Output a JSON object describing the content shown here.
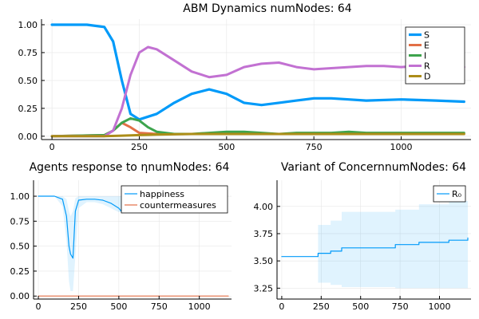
{
  "chart_data": [
    {
      "type": "line",
      "title": "ABM Dynamics numNodes: 64",
      "xlim": [
        -30,
        1200
      ],
      "ylim": [
        -0.03,
        1.05
      ],
      "x_ticks": [
        0,
        250,
        500,
        750,
        1000
      ],
      "x_tick_labels": [
        "0",
        "250",
        "500",
        "750",
        "1000"
      ],
      "y_ticks": [
        0.0,
        0.25,
        0.5,
        0.75,
        1.0
      ],
      "y_tick_labels": [
        "0.00",
        "0.25",
        "0.50",
        "0.75",
        "1.00"
      ],
      "grid": true,
      "legend_position": "top-right",
      "series": [
        {
          "name": "S",
          "color": "#009af9",
          "x": [
            0,
            100,
            150,
            175,
            200,
            225,
            250,
            300,
            350,
            400,
            450,
            500,
            550,
            600,
            650,
            700,
            750,
            800,
            850,
            900,
            1000,
            1100,
            1180
          ],
          "y": [
            1.0,
            1.0,
            0.98,
            0.85,
            0.5,
            0.2,
            0.15,
            0.2,
            0.3,
            0.38,
            0.42,
            0.38,
            0.3,
            0.28,
            0.3,
            0.32,
            0.34,
            0.34,
            0.33,
            0.32,
            0.33,
            0.32,
            0.31
          ]
        },
        {
          "name": "E",
          "color": "#e26f46",
          "x": [
            0,
            150,
            175,
            200,
            225,
            250,
            300,
            400,
            500,
            600,
            700,
            800,
            900,
            1000,
            1100,
            1180
          ],
          "y": [
            0.0,
            0.01,
            0.05,
            0.12,
            0.08,
            0.03,
            0.02,
            0.02,
            0.02,
            0.02,
            0.02,
            0.02,
            0.02,
            0.02,
            0.02,
            0.02
          ]
        },
        {
          "name": "I",
          "color": "#3da44d",
          "x": [
            0,
            150,
            175,
            200,
            225,
            250,
            275,
            300,
            350,
            400,
            450,
            500,
            550,
            600,
            650,
            700,
            750,
            800,
            850,
            900,
            1000,
            1100,
            1180
          ],
          "y": [
            0.0,
            0.01,
            0.05,
            0.12,
            0.16,
            0.14,
            0.08,
            0.04,
            0.02,
            0.02,
            0.03,
            0.04,
            0.04,
            0.03,
            0.02,
            0.03,
            0.03,
            0.03,
            0.04,
            0.03,
            0.03,
            0.03,
            0.03
          ]
        },
        {
          "name": "R",
          "color": "#c271d2",
          "x": [
            0,
            150,
            175,
            200,
            225,
            250,
            275,
            300,
            350,
            400,
            450,
            500,
            550,
            600,
            650,
            700,
            750,
            800,
            850,
            900,
            950,
            1000,
            1050,
            1100,
            1180
          ],
          "y": [
            0.0,
            0.0,
            0.05,
            0.25,
            0.55,
            0.75,
            0.8,
            0.78,
            0.68,
            0.58,
            0.53,
            0.55,
            0.62,
            0.65,
            0.66,
            0.62,
            0.6,
            0.61,
            0.62,
            0.63,
            0.63,
            0.62,
            0.63,
            0.63,
            0.62
          ]
        },
        {
          "name": "D",
          "color": "#ac8d18",
          "x": [
            0,
            150,
            200,
            250,
            300,
            400,
            500,
            600,
            800,
            1000,
            1180
          ],
          "y": [
            0.0,
            0.0,
            0.005,
            0.01,
            0.015,
            0.02,
            0.02,
            0.02,
            0.02,
            0.02,
            0.02
          ]
        }
      ]
    },
    {
      "type": "line",
      "title": "Agents response to ηnumNodes: 64",
      "xlim": [
        -30,
        1200
      ],
      "ylim": [
        -0.03,
        1.16
      ],
      "x_ticks": [
        0,
        250,
        500,
        750,
        1000
      ],
      "x_tick_labels": [
        "0",
        "250",
        "500",
        "750",
        "1000"
      ],
      "y_ticks": [
        0.0,
        0.25,
        0.5,
        0.75,
        1.0
      ],
      "y_tick_labels": [
        "0.00",
        "0.25",
        "0.50",
        "0.75",
        "1.00"
      ],
      "grid": true,
      "legend_position": "top-right",
      "series": [
        {
          "name": "happiness",
          "color": "#009af9",
          "x": [
            0,
            100,
            150,
            175,
            190,
            200,
            215,
            230,
            250,
            300,
            350,
            400,
            450,
            500,
            520
          ],
          "y": [
            1.0,
            1.0,
            0.97,
            0.8,
            0.5,
            0.42,
            0.38,
            0.85,
            0.96,
            0.97,
            0.97,
            0.96,
            0.93,
            0.88,
            0.84
          ],
          "band_low": [
            1.0,
            1.0,
            0.9,
            0.55,
            0.15,
            0.05,
            0.05,
            0.4,
            0.88,
            0.94,
            0.94,
            0.92,
            0.88,
            0.84,
            0.84
          ],
          "band_high": [
            1.0,
            1.0,
            1.0,
            0.97,
            0.85,
            0.8,
            0.85,
            0.98,
            1.0,
            1.0,
            1.0,
            1.0,
            1.0,
            1.0,
            1.0
          ]
        },
        {
          "name": "countermeasures",
          "color": "#e26f46",
          "x": [
            0,
            1180
          ],
          "y": [
            0.0,
            0.0
          ]
        }
      ]
    },
    {
      "type": "line",
      "title": "Variant of ConcernnumNodes: 64",
      "xlim": [
        -30,
        1200
      ],
      "ylim": [
        3.15,
        4.24
      ],
      "x_ticks": [
        0,
        250,
        500,
        750,
        1000
      ],
      "x_tick_labels": [
        "0",
        "250",
        "500",
        "750",
        "1000"
      ],
      "y_ticks": [
        3.25,
        3.5,
        3.75,
        4.0
      ],
      "y_tick_labels": [
        "3.25",
        "3.50",
        "3.75",
        "4.00"
      ],
      "grid": true,
      "legend_position": "top-right",
      "series": [
        {
          "name": "R₀",
          "color": "#009af9",
          "x": [
            0,
            230,
            230,
            310,
            310,
            380,
            380,
            720,
            720,
            870,
            870,
            1060,
            1060,
            1180,
            1180
          ],
          "y": [
            3.54,
            3.54,
            3.57,
            3.57,
            3.59,
            3.59,
            3.62,
            3.62,
            3.65,
            3.65,
            3.67,
            3.67,
            3.69,
            3.69,
            3.71
          ],
          "band_x": [
            230,
            310,
            380,
            720,
            870,
            1060,
            1180
          ],
          "band_low": [
            3.3,
            3.28,
            3.26,
            3.25,
            3.25,
            3.25,
            3.25
          ],
          "band_high": [
            3.83,
            3.87,
            3.95,
            3.97,
            4.02,
            4.05,
            4.05
          ]
        }
      ]
    }
  ]
}
